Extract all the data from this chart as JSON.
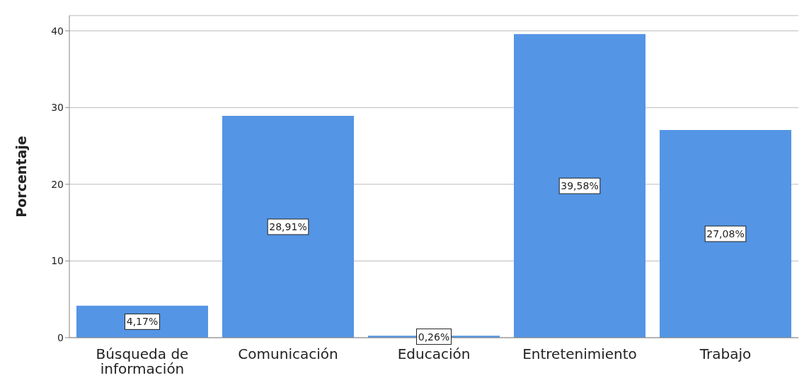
{
  "chart_data": {
    "type": "bar",
    "ylabel": "Porcentaje",
    "categories": [
      "Búsqueda de información",
      "Comunicación",
      "Educación",
      "Entretenimiento",
      "Trabajo"
    ],
    "values": [
      4.17,
      28.91,
      0.26,
      39.58,
      27.08
    ],
    "value_labels": [
      "4,17%",
      "28,91%",
      "0,26%",
      "39,58%",
      "27,08%"
    ],
    "color": "#5495e5",
    "ylim": [
      0,
      42
    ],
    "yticks": [
      0,
      10,
      20,
      30,
      40
    ],
    "grid": "y"
  }
}
